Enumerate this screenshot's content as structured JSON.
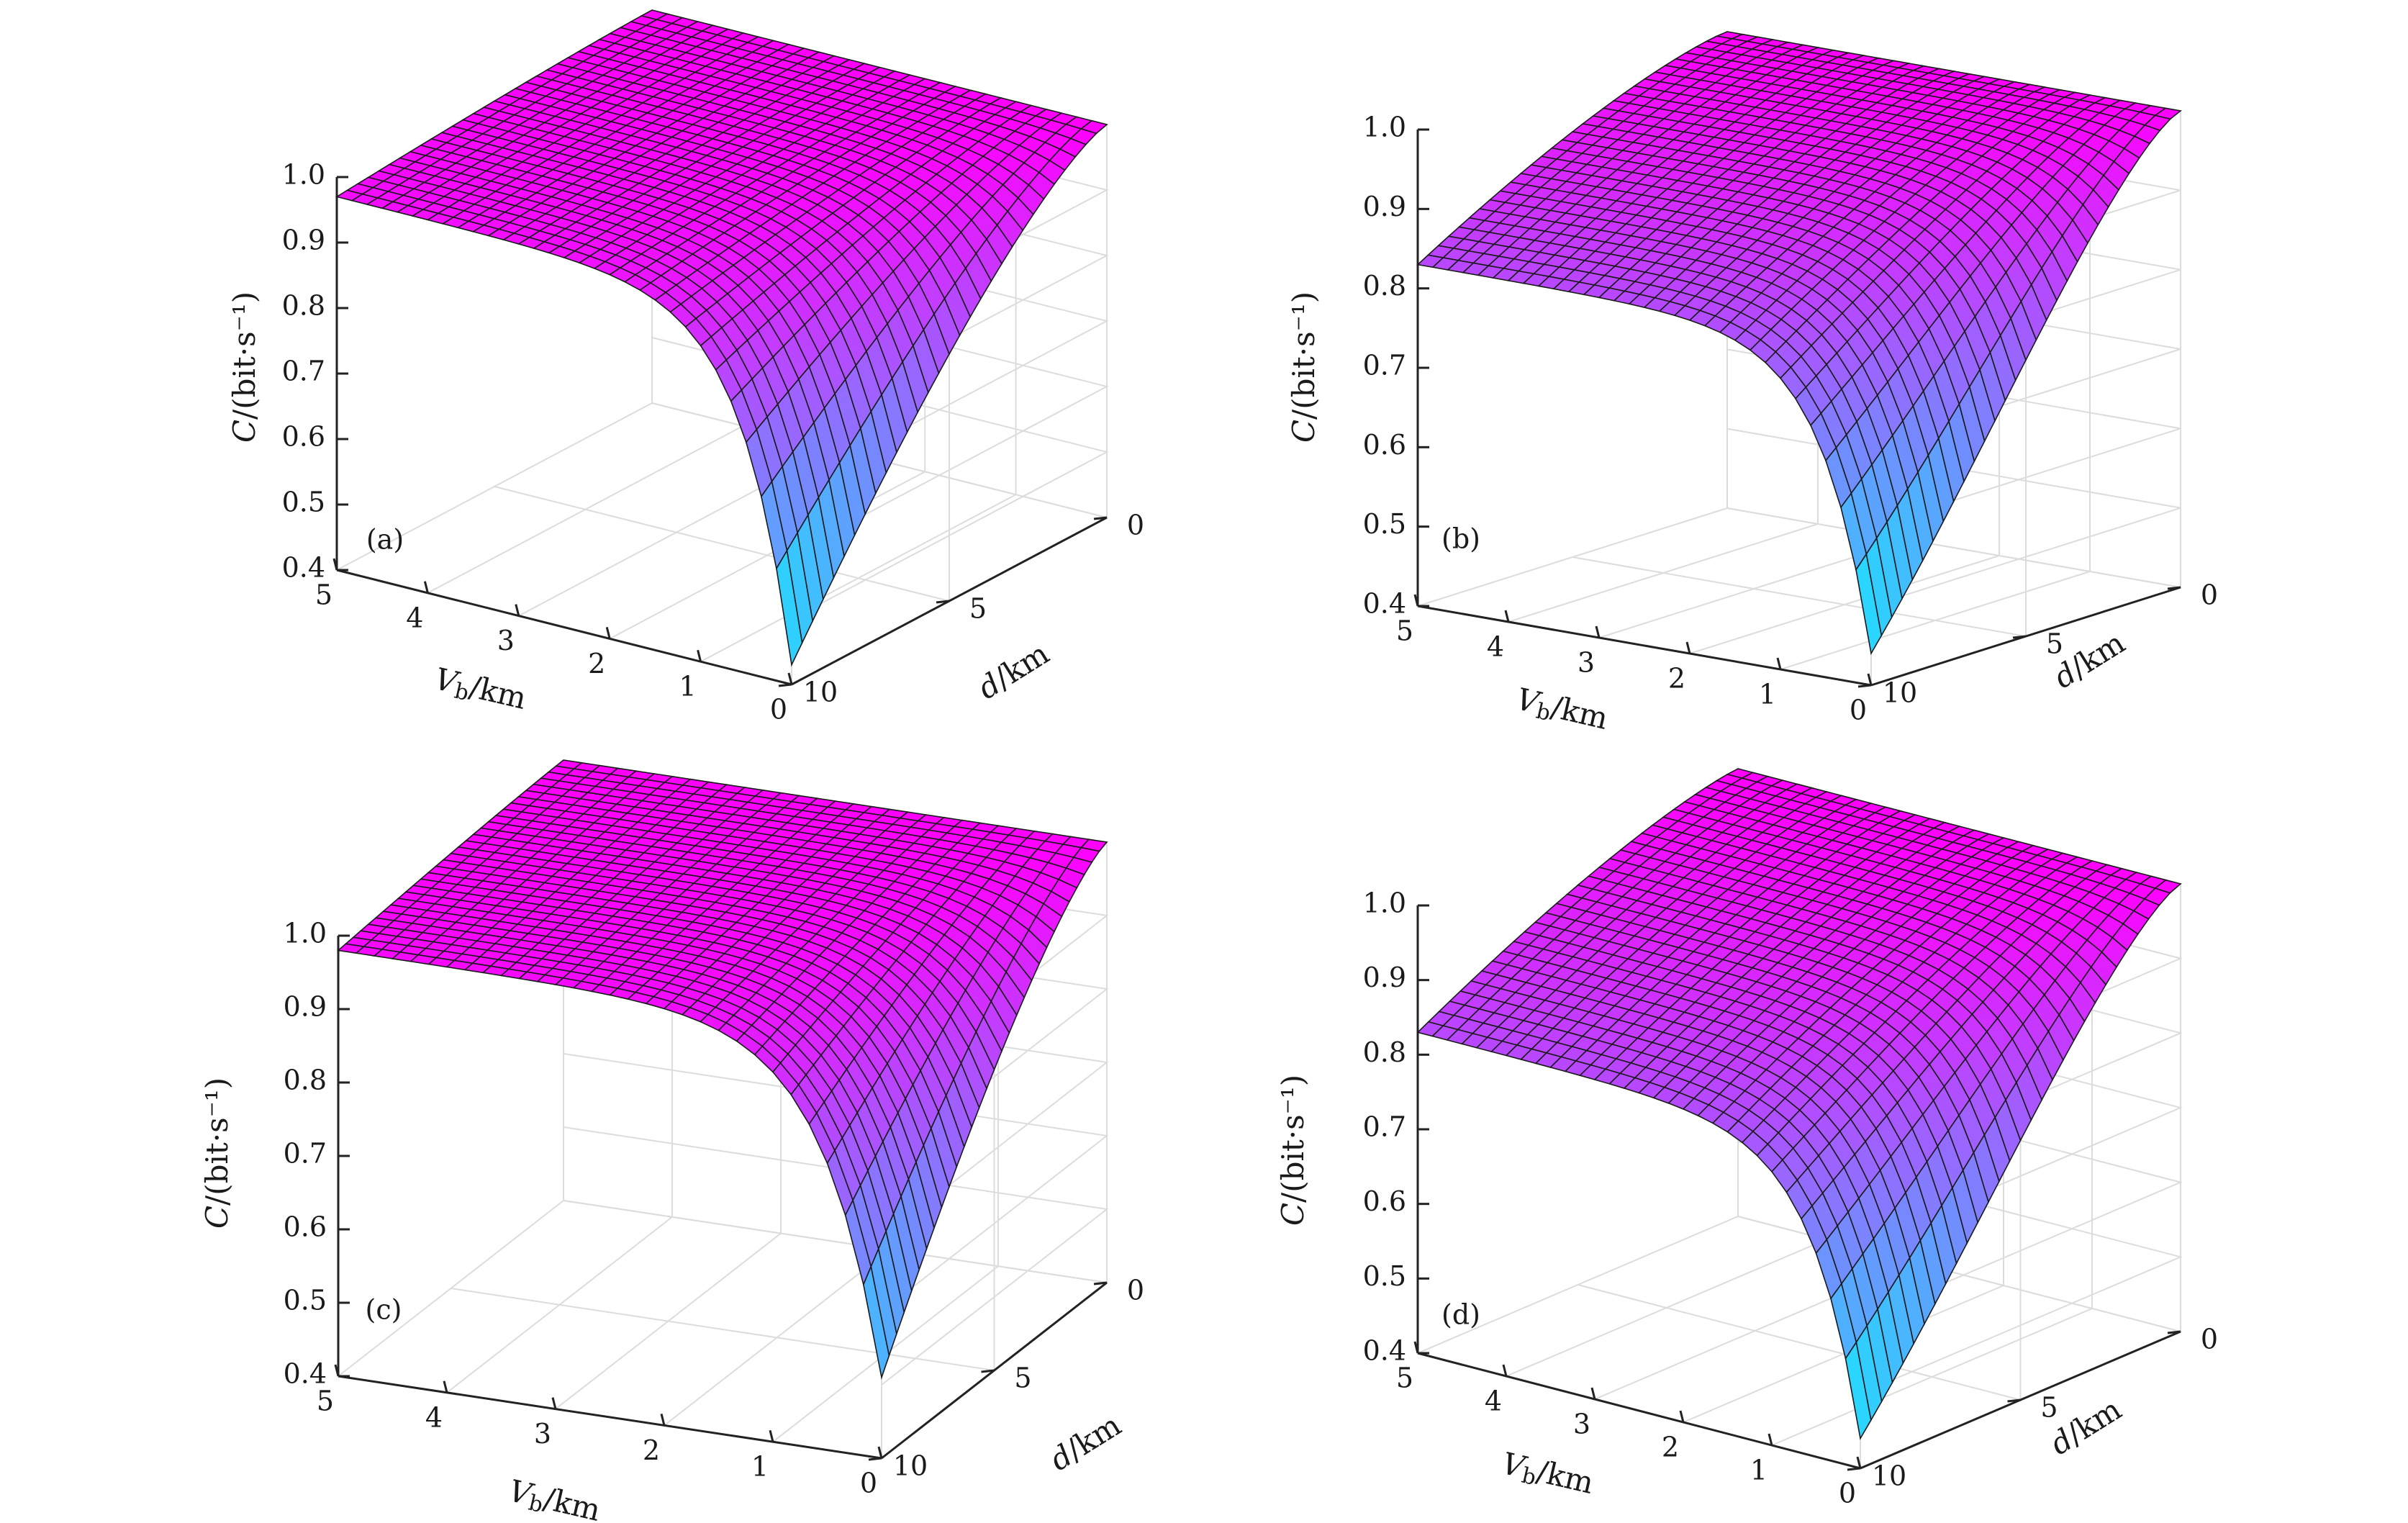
{
  "figure": {
    "panels": [
      "(a)",
      "(b)",
      "(c)",
      "(d)"
    ]
  },
  "axes_text": {
    "zlabel": "C/(bit·s⁻¹)",
    "xlabel": "V_b/km",
    "ylabel": "d/km"
  },
  "colors": {
    "colormap": "cool",
    "low": "#00ffff",
    "high": "#ff00ff",
    "gridlines": "#dcdcdc",
    "axis": "#222222",
    "mesh": "#1a1a1a"
  },
  "chart_data": [
    {
      "type": "surface",
      "panel_label": "(a)",
      "x_axis": {
        "label": "V_b/km",
        "range": [
          0,
          5
        ],
        "ticks": [
          0,
          1,
          2,
          3,
          4,
          5
        ]
      },
      "y_axis": {
        "label": "d/km",
        "range": [
          0,
          10
        ],
        "ticks": [
          0,
          5,
          10
        ]
      },
      "z_axis": {
        "label": "C/(bit·s⁻¹)",
        "range": [
          0.4,
          1.0
        ],
        "ticks": [
          "0.4",
          "0.5",
          "0.6",
          "0.7",
          "0.8",
          "0.9",
          "1.0"
        ]
      },
      "surface": {
        "min_capacity": 0.43,
        "max_capacity": 1.0,
        "capacity_at_Vb5_d10": 0.97,
        "min_at": {
          "V_b": 0,
          "d": 10
        }
      },
      "grid": true
    },
    {
      "type": "surface",
      "panel_label": "(b)",
      "x_axis": {
        "label": "V_b/km",
        "range": [
          0,
          5
        ],
        "ticks": [
          0,
          1,
          2,
          3,
          4,
          5
        ]
      },
      "y_axis": {
        "label": "d/km",
        "range": [
          0,
          10
        ],
        "ticks": [
          0,
          5,
          10
        ]
      },
      "z_axis": {
        "label": "C/(bit·s⁻¹)",
        "range": [
          0.4,
          1.0
        ],
        "ticks": [
          "0.4",
          "0.5",
          "0.6",
          "0.7",
          "0.8",
          "0.9",
          "1.0"
        ]
      },
      "surface": {
        "min_capacity": 0.44,
        "max_capacity": 1.0,
        "capacity_at_Vb5_d10": 0.83,
        "min_at": {
          "V_b": 0,
          "d": 10
        }
      },
      "grid": true
    },
    {
      "type": "surface",
      "panel_label": "(c)",
      "x_axis": {
        "label": "V_b/km",
        "range": [
          0,
          5
        ],
        "ticks": [
          0,
          1,
          2,
          3,
          4,
          5
        ]
      },
      "y_axis": {
        "label": "d/km",
        "range": [
          0,
          10
        ],
        "ticks": [
          0,
          5,
          10
        ]
      },
      "z_axis": {
        "label": "C/(bit·s⁻¹)",
        "range": [
          0.4,
          1.0
        ],
        "ticks": [
          "0.4",
          "0.5",
          "0.6",
          "0.7",
          "0.8",
          "0.9",
          "1.0"
        ]
      },
      "surface": {
        "min_capacity": 0.51,
        "max_capacity": 1.0,
        "capacity_at_Vb5_d10": 0.98,
        "min_at": {
          "V_b": 0,
          "d": 10
        }
      },
      "grid": true
    },
    {
      "type": "surface",
      "panel_label": "(d)",
      "x_axis": {
        "label": "V_b/km",
        "range": [
          0,
          5
        ],
        "ticks": [
          0,
          1,
          2,
          3,
          4,
          5
        ]
      },
      "y_axis": {
        "label": "d/km",
        "range": [
          0,
          10
        ],
        "ticks": [
          0,
          5,
          10
        ]
      },
      "z_axis": {
        "label": "C/(bit·s⁻¹)",
        "range": [
          0.4,
          1.0
        ],
        "ticks": [
          "0.4",
          "0.5",
          "0.6",
          "0.7",
          "0.8",
          "0.9",
          "1.0"
        ]
      },
      "surface": {
        "min_capacity": 0.44,
        "max_capacity": 1.0,
        "capacity_at_Vb5_d10": 0.83,
        "min_at": {
          "V_b": 0,
          "d": 10
        }
      },
      "grid": true
    }
  ]
}
